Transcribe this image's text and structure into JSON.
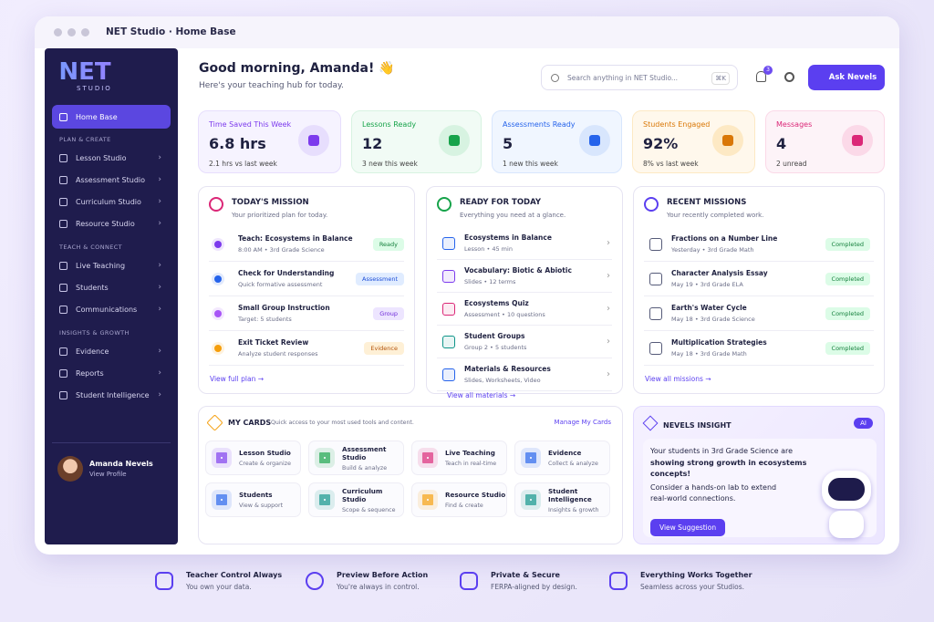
{
  "window_title": "NET Studio · Home Base",
  "sidebar": {
    "logo": "NET",
    "logo_sub": "STUDIO",
    "active": "Home Base",
    "sections": [
      {
        "heading": "PLAN & CREATE",
        "items": [
          "Lesson Studio",
          "Assessment Studio",
          "Curriculum Studio",
          "Resource Studio"
        ]
      },
      {
        "heading": "TEACH & CONNECT",
        "items": [
          "Live Teaching",
          "Students",
          "Communications"
        ]
      },
      {
        "heading": "INSIGHTS & GROWTH",
        "items": [
          "Evidence",
          "Reports",
          "Student Intelligence"
        ]
      }
    ],
    "user": {
      "name": "Amanda Nevels",
      "link": "View Profile"
    }
  },
  "header": {
    "greeting": "Good morning, Amanda! 👋",
    "subtitle": "Here's your teaching hub for today.",
    "search": "Search anything in NET Studio...",
    "shortcut": "⌘K",
    "notifications": 3,
    "button": "Ask Nevels"
  },
  "stats": [
    {
      "label": "Time Saved This Week",
      "value": "6.8 hrs",
      "delta": "2.1 hrs vs last week"
    },
    {
      "label": "Lessons Ready",
      "value": 12,
      "delta": "3 new this week"
    },
    {
      "label": "Assessments Ready",
      "value": 5,
      "delta": "1 new this week"
    },
    {
      "label": "Students Engaged",
      "value": "92%",
      "delta": "8% vs last week"
    },
    {
      "label": "Messages",
      "value": 4,
      "delta": "2 unread"
    }
  ],
  "mission": {
    "title": "TODAY'S MISSION",
    "subtitle": "Your prioritized plan for today.",
    "items": [
      {
        "title": "Teach: Ecosystems in Balance",
        "sub": "8:00 AM • 3rd Grade Science",
        "tag": "Ready"
      },
      {
        "title": "Check for Understanding",
        "sub": "Quick formative assessment",
        "tag": "Assessment"
      },
      {
        "title": "Small Group Instruction",
        "sub": "Target: 5 students",
        "tag": "Group"
      },
      {
        "title": "Exit Ticket Review",
        "sub": "Analyze student responses",
        "tag": "Evidence"
      }
    ],
    "link": "View full plan →"
  },
  "ready": {
    "title": "READY FOR TODAY",
    "subtitle": "Everything you need at a glance.",
    "items": [
      {
        "title": "Ecosystems in Balance",
        "sub": "Lesson • 45 min"
      },
      {
        "title": "Vocabulary: Biotic & Abiotic",
        "sub": "Slides • 12 terms"
      },
      {
        "title": "Ecosystems Quiz",
        "sub": "Assessment • 10 questions"
      },
      {
        "title": "Student Groups",
        "sub": "Group 2 • 5 students"
      },
      {
        "title": "Materials & Resources",
        "sub": "Slides, Worksheets, Video"
      }
    ],
    "link": "View all materials →"
  },
  "recent": {
    "title": "RECENT MISSIONS",
    "subtitle": "Your recently completed work.",
    "items": [
      {
        "title": "Fractions on a Number Line",
        "sub": "Yesterday • 3rd Grade Math",
        "status": "Completed"
      },
      {
        "title": "Character Analysis Essay",
        "sub": "May 19 • 3rd Grade ELA",
        "status": "Completed"
      },
      {
        "title": "Earth's Water Cycle",
        "sub": "May 18 • 3rd Grade Science",
        "status": "Completed"
      },
      {
        "title": "Multiplication Strategies",
        "sub": "May 18 • 3rd Grade Math",
        "status": "Completed"
      }
    ],
    "link": "View all missions →"
  },
  "my_cards": {
    "title": "MY CARDS",
    "subtitle": "Quick access to your most used tools and content.",
    "manage": "Manage My Cards",
    "cards": [
      {
        "name": "Lesson Studio",
        "sub": "Create & organize"
      },
      {
        "name": "Assessment Studio",
        "sub": "Build & analyze"
      },
      {
        "name": "Live Teaching",
        "sub": "Teach in real-time"
      },
      {
        "name": "Evidence",
        "sub": "Collect & analyze"
      },
      {
        "name": "Students",
        "sub": "View & support"
      },
      {
        "name": "Curriculum Studio",
        "sub": "Scope & sequence"
      },
      {
        "name": "Resource Studio",
        "sub": "Find & create"
      },
      {
        "name": "Student Intelligence",
        "sub": "Insights & growth"
      }
    ]
  },
  "insight": {
    "title": "NEVELS INSIGHT",
    "badge": "AI",
    "text": "Your students in 3rd Grade Science are",
    "highlight": "showing strong growth in ecosystems concepts!",
    "suggestion": "Consider a hands-on lab to extend real-world connections.",
    "button": "View Suggestion"
  },
  "features": [
    {
      "title": "Teacher Control Always",
      "sub": "You own your data."
    },
    {
      "title": "Preview Before Action",
      "sub": "You're always in control."
    },
    {
      "title": "Private & Secure",
      "sub": "FERPA-aligned by design."
    },
    {
      "title": "Everything Works Together",
      "sub": "Seamless across your Studios."
    }
  ]
}
